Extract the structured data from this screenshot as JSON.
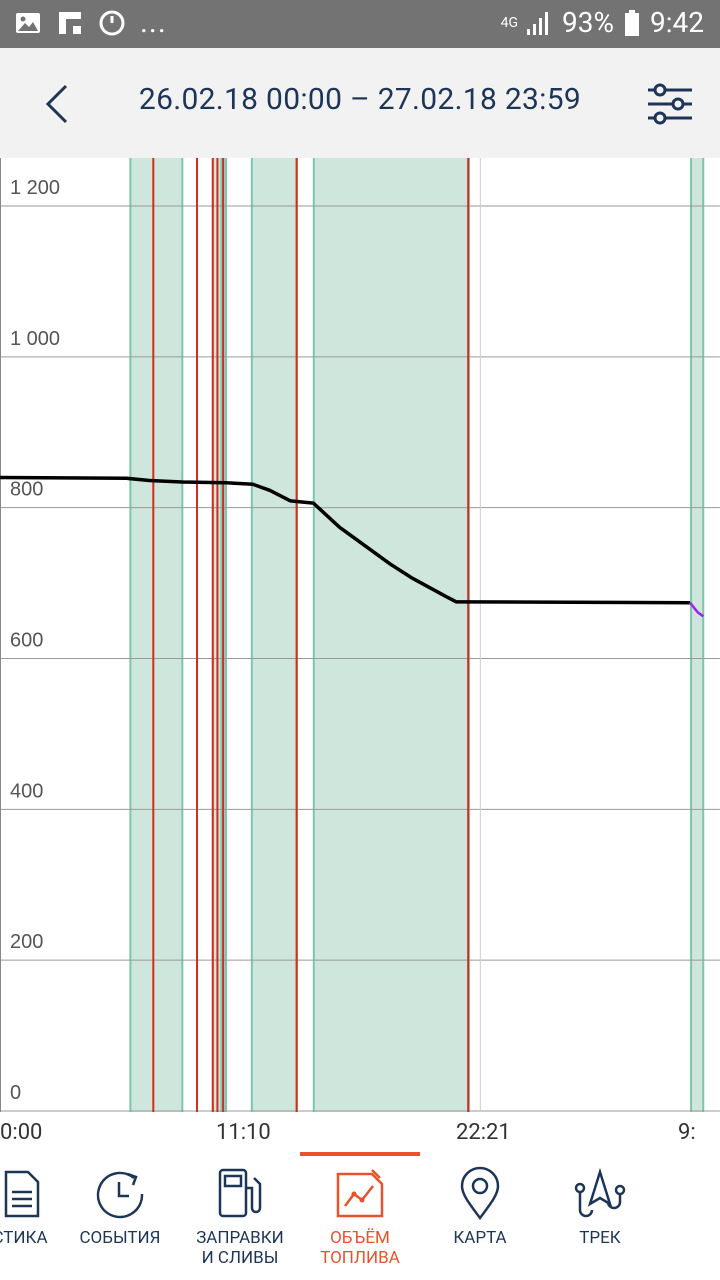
{
  "status_bar": {
    "network": "4G",
    "battery": "93%",
    "time": "9:42",
    "more": "..."
  },
  "header": {
    "title": "26.02.18 00:00 – 27.02.18 23:59"
  },
  "chart_data": {
    "type": "line",
    "title": "",
    "xlabel": "",
    "ylabel": "",
    "ylim": [
      0,
      1200
    ],
    "y_ticks": [
      0,
      200,
      400,
      600,
      800,
      1000,
      1200
    ],
    "y_tick_labels": [
      "0",
      "200",
      "400",
      "600",
      "800",
      "1 000",
      "1 200"
    ],
    "x_tick_labels": [
      "0:00",
      "11:10",
      "22:21",
      "9:"
    ],
    "grid": true,
    "series": [
      {
        "color": "#000000",
        "x": [
          "00:00",
          "05:54",
          "06:57",
          "08:29",
          "10:31",
          "11:08",
          "11:46",
          "12:33",
          "13:31",
          "14:35",
          "15:48",
          "18:10",
          "19:13",
          "20:46",
          "21:14",
          "21:35",
          "27.02 08:45"
        ],
        "values": [
          840,
          839,
          836,
          834,
          833,
          832,
          831,
          823,
          809,
          806,
          774,
          725,
          706,
          682,
          675,
          675,
          674
        ]
      },
      {
        "color": "#a020f0",
        "x": [
          "27.02 08:45",
          "27.02 09:07",
          "27.02 09:22"
        ],
        "values": [
          674,
          661,
          656
        ]
      }
    ],
    "shaded_periods_color": "#cfe6dc",
    "shaded_periods": [
      [
        "06:04",
        "08:29"
      ],
      [
        "09:54",
        "10:18"
      ],
      [
        "10:24",
        "10:31"
      ],
      [
        "11:43",
        "13:49"
      ],
      [
        "14:36",
        "21:49"
      ],
      [
        "27.02 08:48",
        "27.02 09:22"
      ]
    ],
    "event_lines_color": "#d62a1e",
    "event_lines": [
      "07:08",
      "09:10",
      "09:54",
      "10:07",
      "10:23",
      "13:48",
      "21:47"
    ]
  },
  "nav": {
    "items": [
      {
        "label": "СТИКА",
        "icon": "document-icon"
      },
      {
        "label": "СОБЫТИЯ",
        "icon": "clock-history-icon"
      },
      {
        "label": "ЗАПРАВКИ\nИ СЛИВЫ",
        "icon": "fuel-pump-icon"
      },
      {
        "label": "ОБЪЁМ\nТОПЛИВА",
        "icon": "fuel-volume-chart-icon"
      },
      {
        "label": "КАРТА",
        "icon": "map-pin-icon"
      },
      {
        "label": "ТРЕК",
        "icon": "track-icon"
      }
    ],
    "active_index": 3,
    "accent": "#e8522a",
    "text_color": "#1d3557"
  }
}
